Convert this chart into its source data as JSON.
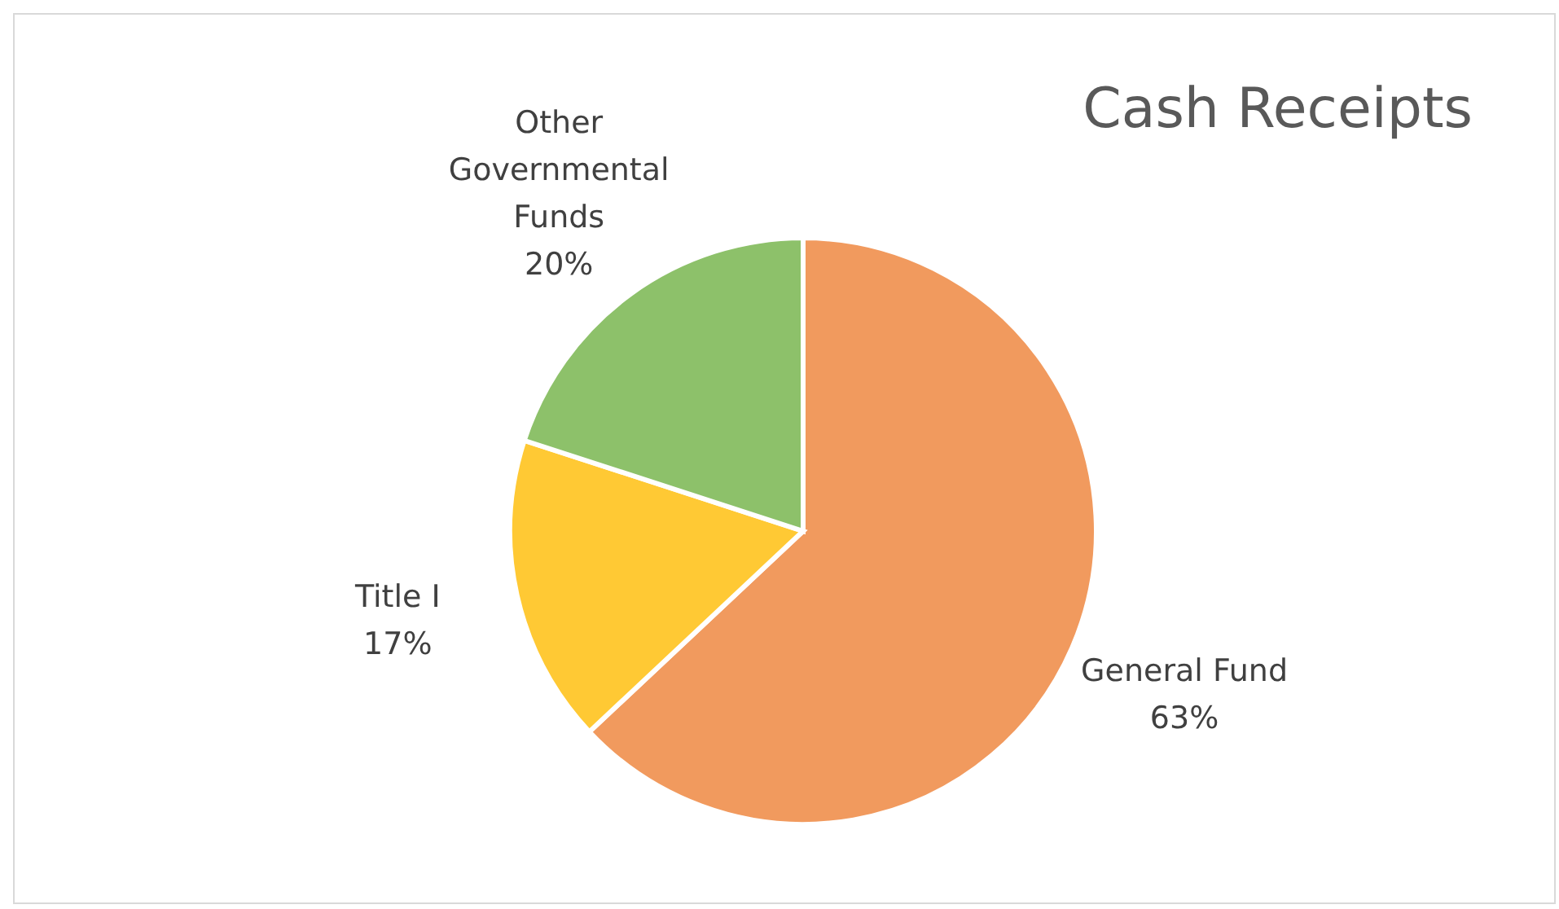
{
  "chart_data": {
    "type": "pie",
    "title": "Cash Receipts",
    "categories": [
      "General Fund",
      "Title I",
      "Other Governmental Funds"
    ],
    "values": [
      63,
      17,
      20
    ],
    "value_labels": [
      "63%",
      "17%",
      "20%"
    ],
    "colors": [
      "#f19a5e",
      "#ffc934",
      "#8dc16a"
    ]
  }
}
